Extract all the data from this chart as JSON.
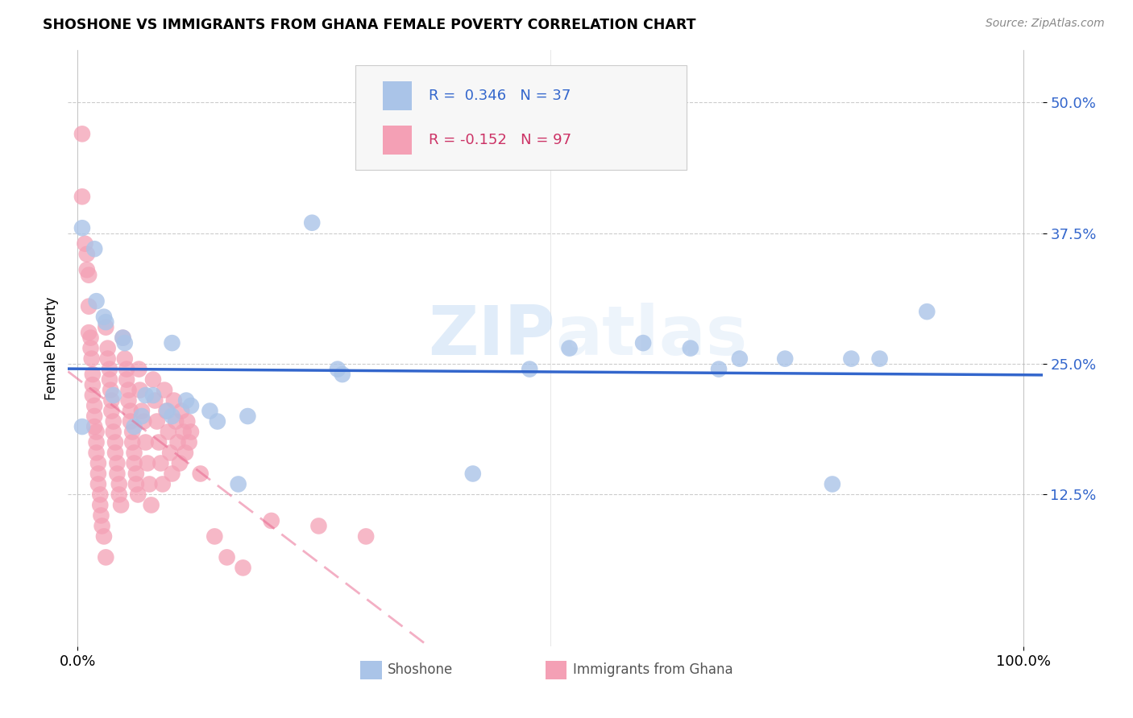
{
  "title": "SHOSHONE VS IMMIGRANTS FROM GHANA FEMALE POVERTY CORRELATION CHART",
  "source": "Source: ZipAtlas.com",
  "ylabel": "Female Poverty",
  "shoshone_color": "#aac4e8",
  "ghana_color": "#f4a0b5",
  "shoshone_line_color": "#3366cc",
  "ghana_line_color": "#e8608a",
  "watermark_color": "#cce0f5",
  "shoshone_points": [
    [
      0.005,
      0.19
    ],
    [
      0.005,
      0.38
    ],
    [
      0.018,
      0.36
    ],
    [
      0.02,
      0.31
    ],
    [
      0.028,
      0.295
    ],
    [
      0.03,
      0.29
    ],
    [
      0.038,
      0.22
    ],
    [
      0.048,
      0.275
    ],
    [
      0.05,
      0.27
    ],
    [
      0.06,
      0.19
    ],
    [
      0.068,
      0.2
    ],
    [
      0.072,
      0.22
    ],
    [
      0.08,
      0.22
    ],
    [
      0.095,
      0.205
    ],
    [
      0.1,
      0.2
    ],
    [
      0.1,
      0.27
    ],
    [
      0.115,
      0.215
    ],
    [
      0.12,
      0.21
    ],
    [
      0.14,
      0.205
    ],
    [
      0.148,
      0.195
    ],
    [
      0.17,
      0.135
    ],
    [
      0.18,
      0.2
    ],
    [
      0.248,
      0.385
    ],
    [
      0.275,
      0.245
    ],
    [
      0.28,
      0.24
    ],
    [
      0.418,
      0.145
    ],
    [
      0.478,
      0.245
    ],
    [
      0.52,
      0.265
    ],
    [
      0.598,
      0.27
    ],
    [
      0.648,
      0.265
    ],
    [
      0.678,
      0.245
    ],
    [
      0.7,
      0.255
    ],
    [
      0.748,
      0.255
    ],
    [
      0.798,
      0.135
    ],
    [
      0.818,
      0.255
    ],
    [
      0.848,
      0.255
    ],
    [
      0.898,
      0.3
    ]
  ],
  "ghana_points": [
    [
      0.005,
      0.47
    ],
    [
      0.005,
      0.41
    ],
    [
      0.008,
      0.365
    ],
    [
      0.01,
      0.355
    ],
    [
      0.01,
      0.34
    ],
    [
      0.012,
      0.335
    ],
    [
      0.012,
      0.305
    ],
    [
      0.012,
      0.28
    ],
    [
      0.014,
      0.275
    ],
    [
      0.014,
      0.265
    ],
    [
      0.015,
      0.255
    ],
    [
      0.016,
      0.24
    ],
    [
      0.016,
      0.23
    ],
    [
      0.016,
      0.22
    ],
    [
      0.018,
      0.21
    ],
    [
      0.018,
      0.2
    ],
    [
      0.018,
      0.19
    ],
    [
      0.02,
      0.185
    ],
    [
      0.02,
      0.175
    ],
    [
      0.02,
      0.165
    ],
    [
      0.022,
      0.155
    ],
    [
      0.022,
      0.145
    ],
    [
      0.022,
      0.135
    ],
    [
      0.024,
      0.125
    ],
    [
      0.024,
      0.115
    ],
    [
      0.025,
      0.105
    ],
    [
      0.026,
      0.095
    ],
    [
      0.028,
      0.085
    ],
    [
      0.03,
      0.065
    ],
    [
      0.03,
      0.285
    ],
    [
      0.032,
      0.265
    ],
    [
      0.032,
      0.255
    ],
    [
      0.034,
      0.245
    ],
    [
      0.034,
      0.235
    ],
    [
      0.035,
      0.225
    ],
    [
      0.036,
      0.215
    ],
    [
      0.036,
      0.205
    ],
    [
      0.038,
      0.195
    ],
    [
      0.038,
      0.185
    ],
    [
      0.04,
      0.175
    ],
    [
      0.04,
      0.165
    ],
    [
      0.042,
      0.155
    ],
    [
      0.042,
      0.145
    ],
    [
      0.044,
      0.135
    ],
    [
      0.044,
      0.125
    ],
    [
      0.046,
      0.115
    ],
    [
      0.048,
      0.275
    ],
    [
      0.05,
      0.255
    ],
    [
      0.052,
      0.245
    ],
    [
      0.052,
      0.235
    ],
    [
      0.054,
      0.225
    ],
    [
      0.054,
      0.215
    ],
    [
      0.056,
      0.205
    ],
    [
      0.056,
      0.195
    ],
    [
      0.058,
      0.185
    ],
    [
      0.058,
      0.175
    ],
    [
      0.06,
      0.165
    ],
    [
      0.06,
      0.155
    ],
    [
      0.062,
      0.145
    ],
    [
      0.062,
      0.135
    ],
    [
      0.064,
      0.125
    ],
    [
      0.065,
      0.245
    ],
    [
      0.066,
      0.225
    ],
    [
      0.068,
      0.205
    ],
    [
      0.07,
      0.195
    ],
    [
      0.072,
      0.175
    ],
    [
      0.074,
      0.155
    ],
    [
      0.076,
      0.135
    ],
    [
      0.078,
      0.115
    ],
    [
      0.08,
      0.235
    ],
    [
      0.082,
      0.215
    ],
    [
      0.084,
      0.195
    ],
    [
      0.086,
      0.175
    ],
    [
      0.088,
      0.155
    ],
    [
      0.09,
      0.135
    ],
    [
      0.092,
      0.225
    ],
    [
      0.094,
      0.205
    ],
    [
      0.096,
      0.185
    ],
    [
      0.098,
      0.165
    ],
    [
      0.1,
      0.145
    ],
    [
      0.102,
      0.215
    ],
    [
      0.104,
      0.195
    ],
    [
      0.106,
      0.175
    ],
    [
      0.108,
      0.155
    ],
    [
      0.11,
      0.205
    ],
    [
      0.112,
      0.185
    ],
    [
      0.114,
      0.165
    ],
    [
      0.116,
      0.195
    ],
    [
      0.118,
      0.175
    ],
    [
      0.12,
      0.185
    ],
    [
      0.13,
      0.145
    ],
    [
      0.145,
      0.085
    ],
    [
      0.158,
      0.065
    ],
    [
      0.175,
      0.055
    ],
    [
      0.205,
      0.1
    ],
    [
      0.255,
      0.095
    ],
    [
      0.305,
      0.085
    ]
  ],
  "y_tick_vals": [
    0.125,
    0.25,
    0.375,
    0.5
  ],
  "y_tick_labels": [
    "12.5%",
    "25.0%",
    "37.5%",
    "50.0%"
  ],
  "x_lim": [
    -0.01,
    1.02
  ],
  "y_lim": [
    -0.02,
    0.55
  ]
}
